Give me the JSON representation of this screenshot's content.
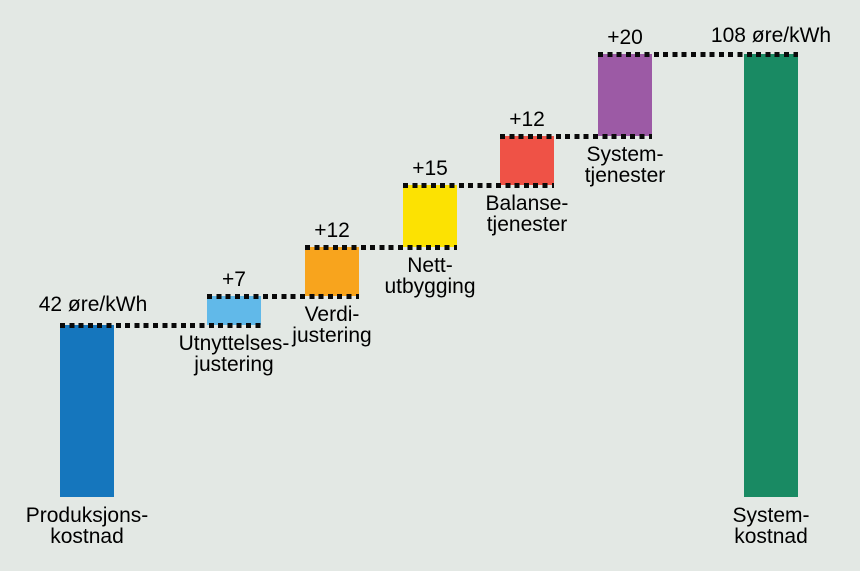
{
  "chart_data": {
    "type": "bar",
    "subtype": "waterfall",
    "title": "",
    "unit": "øre/kWh",
    "background": "#e3e8e4",
    "text_color": "#000000",
    "connector_style": "dotted",
    "connector_color": "#0a0a0a",
    "axes_visible": false,
    "gridlines": false,
    "legend": false,
    "ylim": [
      0,
      118
    ],
    "start": {
      "label": "Produksjons-\nkostnad",
      "value": 42,
      "value_label": "42 øre/kWh",
      "color": "#1576bd"
    },
    "steps": [
      {
        "label": "Utnyttelses-\njustering",
        "delta": 7,
        "delta_label": "+7",
        "cumulative": 49,
        "color": "#61b9e9"
      },
      {
        "label": "Verdi-\njustering",
        "delta": 12,
        "delta_label": "+12",
        "cumulative": 61,
        "color": "#f8a41d"
      },
      {
        "label": "Nett-\nutbygging",
        "delta": 15,
        "delta_label": "+15",
        "cumulative": 76,
        "color": "#fce202"
      },
      {
        "label": "Balanse-\ntjenester",
        "delta": 12,
        "delta_label": "+12",
        "cumulative": 88,
        "color": "#ef5246"
      },
      {
        "label": "System-\ntjenester",
        "delta": 20,
        "delta_label": "+20",
        "cumulative": 108,
        "color": "#9c5aa5"
      }
    ],
    "total": {
      "label": "System-\nkostnad",
      "value": 108,
      "value_label": "108 øre/kWh",
      "color": "#198a63"
    }
  }
}
